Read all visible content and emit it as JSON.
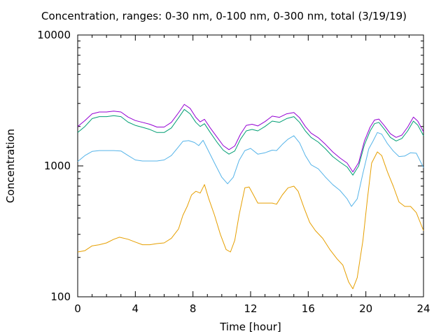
{
  "chart_data": {
    "type": "line",
    "title": "Concentration, ranges: 0-30 nm, 0-100 nm, 0-300 nm, total (3/19/19)",
    "xlabel": "Time [hour]",
    "ylabel": "Concentration",
    "xlim": [
      0,
      24
    ],
    "ylim": [
      100,
      10000
    ],
    "yscale": "log",
    "xticks": [
      0,
      4,
      8,
      12,
      16,
      20,
      24
    ],
    "yticks": [
      100,
      1000,
      10000
    ],
    "xtick_labels": [
      "0",
      "4",
      "8",
      "12",
      "16",
      "20",
      "24"
    ],
    "ytick_labels": [
      "100",
      "1000",
      "10000"
    ],
    "grid": false,
    "legend": "none",
    "series": [
      {
        "color": "#e69f00",
        "points": [
          [
            0,
            220
          ],
          [
            0.5,
            225
          ],
          [
            1,
            245
          ],
          [
            1.5,
            250
          ],
          [
            2,
            258
          ],
          [
            2.5,
            275
          ],
          [
            2.9,
            285
          ],
          [
            3.5,
            275
          ],
          [
            4,
            262
          ],
          [
            4.5,
            250
          ],
          [
            5,
            250
          ],
          [
            5.5,
            255
          ],
          [
            6,
            258
          ],
          [
            6.5,
            280
          ],
          [
            7,
            330
          ],
          [
            7.3,
            420
          ],
          [
            7.6,
            490
          ],
          [
            7.9,
            600
          ],
          [
            8.2,
            640
          ],
          [
            8.5,
            620
          ],
          [
            8.8,
            720
          ],
          [
            9.1,
            560
          ],
          [
            9.5,
            420
          ],
          [
            9.9,
            300
          ],
          [
            10.3,
            230
          ],
          [
            10.6,
            220
          ],
          [
            10.9,
            270
          ],
          [
            11.2,
            420
          ],
          [
            11.6,
            680
          ],
          [
            11.9,
            690
          ],
          [
            12.2,
            600
          ],
          [
            12.5,
            520
          ],
          [
            13,
            520
          ],
          [
            13.5,
            520
          ],
          [
            13.8,
            510
          ],
          [
            14.2,
            600
          ],
          [
            14.6,
            680
          ],
          [
            15,
            700
          ],
          [
            15.3,
            640
          ],
          [
            15.7,
            480
          ],
          [
            16.1,
            370
          ],
          [
            16.5,
            320
          ],
          [
            17,
            280
          ],
          [
            17.5,
            230
          ],
          [
            18,
            195
          ],
          [
            18.4,
            175
          ],
          [
            18.8,
            130
          ],
          [
            19.1,
            115
          ],
          [
            19.4,
            140
          ],
          [
            19.8,
            270
          ],
          [
            20.1,
            550
          ],
          [
            20.4,
            1050
          ],
          [
            20.8,
            1280
          ],
          [
            21.1,
            1200
          ],
          [
            21.5,
            900
          ],
          [
            21.9,
            700
          ],
          [
            22.3,
            530
          ],
          [
            22.7,
            490
          ],
          [
            23.1,
            490
          ],
          [
            23.5,
            440
          ],
          [
            24,
            320
          ]
        ]
      },
      {
        "color": "#56b4e9",
        "points": [
          [
            0,
            1080
          ],
          [
            0.5,
            1200
          ],
          [
            1,
            1290
          ],
          [
            1.5,
            1310
          ],
          [
            2,
            1310
          ],
          [
            2.5,
            1310
          ],
          [
            3,
            1300
          ],
          [
            3.5,
            1200
          ],
          [
            4,
            1110
          ],
          [
            4.5,
            1090
          ],
          [
            5,
            1090
          ],
          [
            5.5,
            1090
          ],
          [
            6,
            1110
          ],
          [
            6.5,
            1200
          ],
          [
            7,
            1400
          ],
          [
            7.3,
            1540
          ],
          [
            7.7,
            1560
          ],
          [
            8.1,
            1510
          ],
          [
            8.4,
            1430
          ],
          [
            8.7,
            1570
          ],
          [
            9,
            1350
          ],
          [
            9.5,
            1050
          ],
          [
            10,
            820
          ],
          [
            10.4,
            730
          ],
          [
            10.8,
            820
          ],
          [
            11.2,
            1100
          ],
          [
            11.6,
            1310
          ],
          [
            12,
            1360
          ],
          [
            12.5,
            1230
          ],
          [
            13,
            1260
          ],
          [
            13.5,
            1320
          ],
          [
            13.8,
            1310
          ],
          [
            14.2,
            1460
          ],
          [
            14.6,
            1600
          ],
          [
            15,
            1700
          ],
          [
            15.4,
            1500
          ],
          [
            15.8,
            1200
          ],
          [
            16.2,
            1020
          ],
          [
            16.7,
            950
          ],
          [
            17.2,
            820
          ],
          [
            17.7,
            720
          ],
          [
            18.2,
            650
          ],
          [
            18.7,
            560
          ],
          [
            19,
            490
          ],
          [
            19.4,
            560
          ],
          [
            19.8,
            880
          ],
          [
            20.2,
            1350
          ],
          [
            20.5,
            1550
          ],
          [
            20.8,
            1800
          ],
          [
            21.1,
            1750
          ],
          [
            21.5,
            1480
          ],
          [
            21.9,
            1300
          ],
          [
            22.3,
            1180
          ],
          [
            22.7,
            1190
          ],
          [
            23.1,
            1260
          ],
          [
            23.5,
            1250
          ],
          [
            24,
            970
          ]
        ]
      },
      {
        "color": "#009e73",
        "points": [
          [
            0,
            1800
          ],
          [
            0.5,
            2000
          ],
          [
            1,
            2300
          ],
          [
            1.5,
            2380
          ],
          [
            2,
            2380
          ],
          [
            2.5,
            2420
          ],
          [
            3,
            2380
          ],
          [
            3.5,
            2160
          ],
          [
            4,
            2040
          ],
          [
            4.5,
            1970
          ],
          [
            5,
            1900
          ],
          [
            5.5,
            1800
          ],
          [
            6,
            1800
          ],
          [
            6.5,
            1950
          ],
          [
            7,
            2330
          ],
          [
            7.4,
            2700
          ],
          [
            7.8,
            2500
          ],
          [
            8.2,
            2150
          ],
          [
            8.5,
            2000
          ],
          [
            8.8,
            2100
          ],
          [
            9.2,
            1800
          ],
          [
            9.7,
            1500
          ],
          [
            10.1,
            1320
          ],
          [
            10.5,
            1230
          ],
          [
            10.9,
            1300
          ],
          [
            11.3,
            1600
          ],
          [
            11.7,
            1850
          ],
          [
            12.1,
            1900
          ],
          [
            12.5,
            1850
          ],
          [
            13,
            2000
          ],
          [
            13.5,
            2200
          ],
          [
            14,
            2150
          ],
          [
            14.5,
            2300
          ],
          [
            15,
            2380
          ],
          [
            15.4,
            2150
          ],
          [
            15.8,
            1850
          ],
          [
            16.2,
            1650
          ],
          [
            16.7,
            1520
          ],
          [
            17.2,
            1350
          ],
          [
            17.7,
            1180
          ],
          [
            18.2,
            1070
          ],
          [
            18.7,
            980
          ],
          [
            19.1,
            850
          ],
          [
            19.5,
            1000
          ],
          [
            19.9,
            1450
          ],
          [
            20.3,
            1850
          ],
          [
            20.6,
            2100
          ],
          [
            20.9,
            2150
          ],
          [
            21.3,
            1900
          ],
          [
            21.7,
            1650
          ],
          [
            22.1,
            1550
          ],
          [
            22.5,
            1620
          ],
          [
            22.9,
            1850
          ],
          [
            23.3,
            2200
          ],
          [
            23.6,
            2050
          ],
          [
            24,
            1700
          ]
        ]
      },
      {
        "color": "#9400d3",
        "points": [
          [
            0,
            2000
          ],
          [
            0.5,
            2220
          ],
          [
            1,
            2500
          ],
          [
            1.5,
            2580
          ],
          [
            2,
            2580
          ],
          [
            2.5,
            2620
          ],
          [
            3,
            2580
          ],
          [
            3.5,
            2360
          ],
          [
            4,
            2220
          ],
          [
            4.5,
            2150
          ],
          [
            5,
            2080
          ],
          [
            5.5,
            1980
          ],
          [
            6,
            1980
          ],
          [
            6.5,
            2150
          ],
          [
            7,
            2550
          ],
          [
            7.4,
            2950
          ],
          [
            7.8,
            2750
          ],
          [
            8.2,
            2350
          ],
          [
            8.5,
            2170
          ],
          [
            8.8,
            2270
          ],
          [
            9.2,
            1950
          ],
          [
            9.7,
            1640
          ],
          [
            10.1,
            1430
          ],
          [
            10.5,
            1330
          ],
          [
            10.9,
            1420
          ],
          [
            11.3,
            1750
          ],
          [
            11.7,
            2040
          ],
          [
            12.1,
            2080
          ],
          [
            12.5,
            2020
          ],
          [
            13,
            2180
          ],
          [
            13.5,
            2400
          ],
          [
            14,
            2350
          ],
          [
            14.5,
            2500
          ],
          [
            15,
            2560
          ],
          [
            15.4,
            2330
          ],
          [
            15.8,
            2000
          ],
          [
            16.2,
            1780
          ],
          [
            16.7,
            1640
          ],
          [
            17.2,
            1460
          ],
          [
            17.7,
            1280
          ],
          [
            18.2,
            1150
          ],
          [
            18.7,
            1050
          ],
          [
            19.1,
            900
          ],
          [
            19.5,
            1060
          ],
          [
            19.9,
            1550
          ],
          [
            20.3,
            1980
          ],
          [
            20.6,
            2240
          ],
          [
            20.9,
            2280
          ],
          [
            21.3,
            2020
          ],
          [
            21.7,
            1760
          ],
          [
            22.1,
            1650
          ],
          [
            22.5,
            1720
          ],
          [
            22.9,
            1980
          ],
          [
            23.3,
            2360
          ],
          [
            23.6,
            2200
          ],
          [
            24,
            1820
          ]
        ]
      }
    ]
  }
}
